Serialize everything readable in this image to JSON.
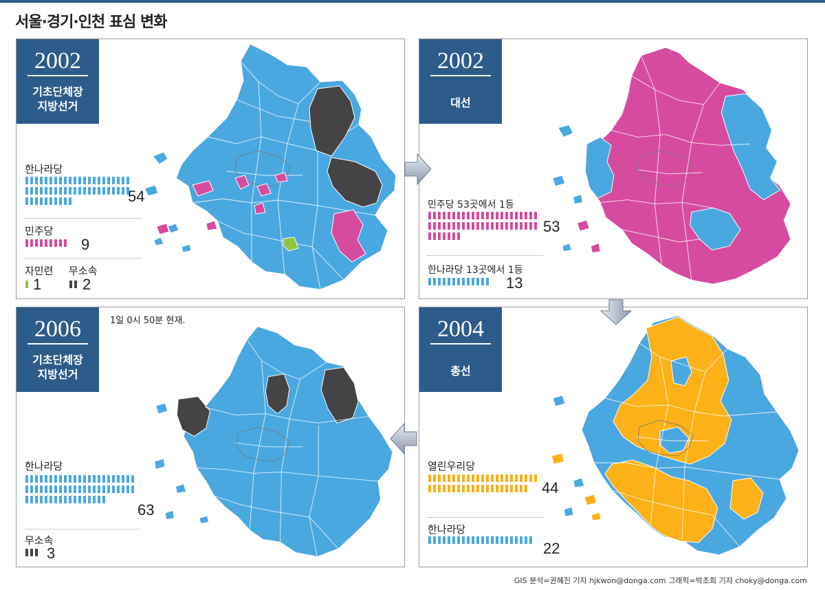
{
  "title": "서울·경기·인천 표심 변화",
  "colors": {
    "hannara": "#4aa8e0",
    "minju": "#d64b9f",
    "jaminryeon": "#8dc63f",
    "musosok": "#444444",
    "yeollin": "#fbb117",
    "badge": "#2d5b8a"
  },
  "panels": {
    "p1": {
      "year": "2002",
      "subtitle_line1": "기초단체장",
      "subtitle_line2": "지방선거",
      "parties": [
        {
          "label": "한나라당",
          "value": "54",
          "count": 54,
          "color": "#4aa8e0"
        },
        {
          "label": "민주당",
          "value": "9",
          "count": 9,
          "color": "#d64b9f"
        },
        {
          "label": "자민련",
          "value": "1",
          "count": 1,
          "color": "#8dc63f"
        },
        {
          "label": "무소속",
          "value": "2",
          "count": 2,
          "color": "#444444"
        }
      ]
    },
    "p2": {
      "year": "2002",
      "subtitle": "대선",
      "parties": [
        {
          "label": "민주당  53곳에서 1등",
          "value": "53",
          "count": 53,
          "color": "#d64b9f"
        },
        {
          "label": "한나라당  13곳에서 1등",
          "value": "13",
          "count": 13,
          "color": "#4aa8e0"
        }
      ]
    },
    "p3": {
      "year": "2006",
      "subtitle_line1": "기초단체장",
      "subtitle_line2": "지방선거",
      "note": "1일 0시 50분 현재.",
      "parties": [
        {
          "label": "한나라당",
          "value": "63",
          "count": 63,
          "color": "#4aa8e0"
        },
        {
          "label": "무소속",
          "value": "3",
          "count": 3,
          "color": "#444444"
        }
      ]
    },
    "p4": {
      "year": "2004",
      "subtitle": "총선",
      "parties": [
        {
          "label": "열린우리당",
          "value": "44",
          "count": 44,
          "color": "#fbb117"
        },
        {
          "label": "한나라당",
          "value": "22",
          "count": 22,
          "color": "#4aa8e0"
        }
      ]
    }
  },
  "credits": "GIS 분석=권혜진 기자 hjkwon@donga.com 그래픽=박초희 기자 choky@donga.com"
}
